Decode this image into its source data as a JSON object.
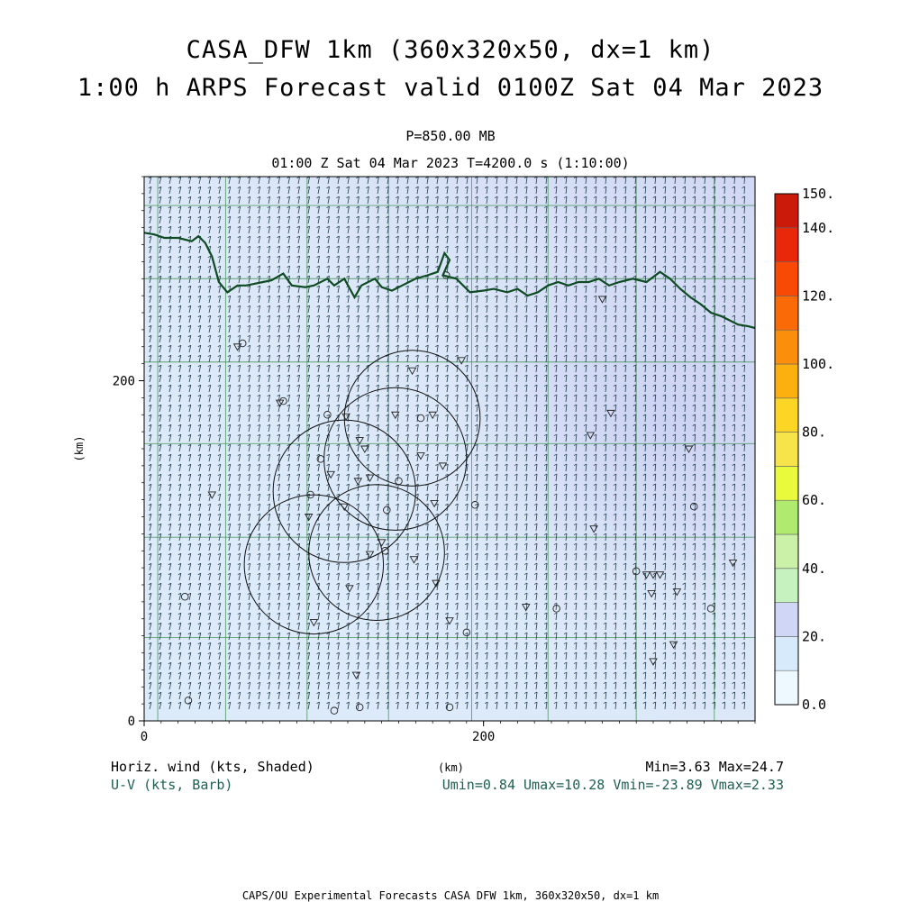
{
  "header": {
    "title_line1": "CASA_DFW 1km (360x320x50, dx=1 km)",
    "title_line2": "1:00 h ARPS Forecast valid 0100Z Sat 04 Mar 2023",
    "pressure_level": "P=850.00 MB",
    "time_line": "01:00 Z Sat 04 Mar 2023   T=4200.0 s (1:10:00)"
  },
  "footer": {
    "field1": "Horiz. wind (kts, Shaded)",
    "field2": "U-V (kts, Barb)",
    "xunit": "(km)",
    "minmax": "Min=3.63 Max=24.7",
    "uv_stats": "Umin=0.84 Umax=10.28 Vmin=-23.89 Vmax=2.33",
    "credit": "CAPS/OU Experimental Forecasts  CASA DFW 1km, 360x320x50, dx=1 km"
  },
  "chart_data": {
    "type": "heatmap",
    "title": "CASA_DFW 1km (360x320x50, dx=1 km)",
    "subtitle": "1:00 h ARPS Forecast valid 0100Z Sat 04 Mar 2023",
    "xlabel": "(km)",
    "ylabel": "(km)",
    "xlim": [
      0,
      360
    ],
    "ylim": [
      0,
      320
    ],
    "x_ticks": [
      0,
      200
    ],
    "y_ticks": [
      0,
      200
    ],
    "x_tick_labels": [
      "0",
      "200"
    ],
    "y_tick_labels": [
      "0",
      "200"
    ],
    "field_min": 3.63,
    "field_max": 24.7,
    "u_min": 0.84,
    "u_max": 10.28,
    "v_min": -23.89,
    "v_max": 2.33,
    "colorbar": {
      "levels": [
        0,
        10,
        20,
        30,
        40,
        50,
        60,
        70,
        80,
        90,
        100,
        110,
        120,
        130,
        140,
        150
      ],
      "labels": [
        "0.0",
        "20.",
        "40.",
        "60.",
        "80.",
        "100.",
        "120.",
        "140.",
        "150."
      ],
      "colors": [
        "#eef8ff",
        "#d6eafc",
        "#cfd6f6",
        "#c6f2c0",
        "#cbf0a8",
        "#b0ea6e",
        "#e9fa3c",
        "#f6e44a",
        "#fdd524",
        "#fcb010",
        "#fb8e0a",
        "#fa6a06",
        "#f84a04",
        "#e82808",
        "#cc1a0a"
      ]
    },
    "radar_sites_km": [
      {
        "x": 100,
        "y": 92,
        "r": 41
      },
      {
        "x": 137,
        "y": 99,
        "r": 40
      },
      {
        "x": 118,
        "y": 135,
        "r": 42
      },
      {
        "x": 148,
        "y": 154,
        "r": 42
      },
      {
        "x": 158,
        "y": 178,
        "r": 40
      }
    ],
    "stations_km": [
      {
        "x": 58,
        "y": 222,
        "m": "c"
      },
      {
        "x": 55,
        "y": 220,
        "m": "v"
      },
      {
        "x": 80,
        "y": 187,
        "m": "v"
      },
      {
        "x": 82,
        "y": 188,
        "m": "c"
      },
      {
        "x": 108,
        "y": 180,
        "m": "c"
      },
      {
        "x": 119,
        "y": 179,
        "m": "v"
      },
      {
        "x": 127,
        "y": 165,
        "m": "v"
      },
      {
        "x": 130,
        "y": 160,
        "m": "v"
      },
      {
        "x": 104,
        "y": 154,
        "m": "c"
      },
      {
        "x": 110,
        "y": 145,
        "m": "v"
      },
      {
        "x": 126,
        "y": 141,
        "m": "v"
      },
      {
        "x": 133,
        "y": 143,
        "m": "v"
      },
      {
        "x": 150,
        "y": 141,
        "m": "c"
      },
      {
        "x": 98,
        "y": 133,
        "m": "c"
      },
      {
        "x": 97,
        "y": 120,
        "m": "v"
      },
      {
        "x": 118,
        "y": 126,
        "m": "v"
      },
      {
        "x": 143,
        "y": 124,
        "m": "c"
      },
      {
        "x": 140,
        "y": 105,
        "m": "v"
      },
      {
        "x": 133,
        "y": 98,
        "m": "v"
      },
      {
        "x": 142,
        "y": 100,
        "m": "c"
      },
      {
        "x": 159,
        "y": 95,
        "m": "v"
      },
      {
        "x": 171,
        "y": 128,
        "m": "v"
      },
      {
        "x": 176,
        "y": 150,
        "m": "v"
      },
      {
        "x": 163,
        "y": 156,
        "m": "v"
      },
      {
        "x": 163,
        "y": 178,
        "m": "c"
      },
      {
        "x": 170,
        "y": 180,
        "m": "v"
      },
      {
        "x": 148,
        "y": 180,
        "m": "v"
      },
      {
        "x": 158,
        "y": 206,
        "m": "v"
      },
      {
        "x": 187,
        "y": 212,
        "m": "v"
      },
      {
        "x": 178,
        "y": 262,
        "m": "c"
      },
      {
        "x": 195,
        "y": 127,
        "m": "c"
      },
      {
        "x": 40,
        "y": 133,
        "m": "v"
      },
      {
        "x": 24,
        "y": 73,
        "m": "c"
      },
      {
        "x": 26,
        "y": 12,
        "m": "c"
      },
      {
        "x": 112,
        "y": 6,
        "m": "c"
      },
      {
        "x": 127,
        "y": 8,
        "m": "c"
      },
      {
        "x": 125,
        "y": 27,
        "m": "v"
      },
      {
        "x": 121,
        "y": 78,
        "m": "v"
      },
      {
        "x": 172,
        "y": 81,
        "m": "v"
      },
      {
        "x": 180,
        "y": 59,
        "m": "v"
      },
      {
        "x": 190,
        "y": 52,
        "m": "c"
      },
      {
        "x": 180,
        "y": 8,
        "m": "c"
      },
      {
        "x": 225,
        "y": 67,
        "m": "v"
      },
      {
        "x": 243,
        "y": 66,
        "m": "c"
      },
      {
        "x": 265,
        "y": 113,
        "m": "v"
      },
      {
        "x": 263,
        "y": 168,
        "m": "v"
      },
      {
        "x": 275,
        "y": 181,
        "m": "v"
      },
      {
        "x": 270,
        "y": 248,
        "m": "v"
      },
      {
        "x": 290,
        "y": 88,
        "m": "c"
      },
      {
        "x": 296,
        "y": 86,
        "m": "v"
      },
      {
        "x": 300,
        "y": 86,
        "m": "v"
      },
      {
        "x": 304,
        "y": 86,
        "m": "v"
      },
      {
        "x": 299,
        "y": 75,
        "m": "v"
      },
      {
        "x": 314,
        "y": 76,
        "m": "v"
      },
      {
        "x": 324,
        "y": 126,
        "m": "c"
      },
      {
        "x": 321,
        "y": 160,
        "m": "v"
      },
      {
        "x": 334,
        "y": 66,
        "m": "c"
      },
      {
        "x": 312,
        "y": 45,
        "m": "v"
      },
      {
        "x": 300,
        "y": 35,
        "m": "v"
      },
      {
        "x": 347,
        "y": 93,
        "m": "v"
      },
      {
        "x": 100,
        "y": 58,
        "m": "v"
      }
    ],
    "boundary_km": [
      [
        0,
        287
      ],
      [
        6,
        286
      ],
      [
        12,
        284
      ],
      [
        20,
        284
      ],
      [
        28,
        282
      ],
      [
        32,
        285
      ],
      [
        36,
        281
      ],
      [
        40,
        273
      ],
      [
        44,
        258
      ],
      [
        49,
        252
      ],
      [
        55,
        256
      ],
      [
        60,
        256
      ],
      [
        65,
        257
      ],
      [
        70,
        258
      ],
      [
        75,
        259
      ],
      [
        82,
        263
      ],
      [
        87,
        256
      ],
      [
        95,
        255
      ],
      [
        100,
        256
      ],
      [
        108,
        260
      ],
      [
        112,
        256
      ],
      [
        118,
        260
      ],
      [
        124,
        249
      ],
      [
        128,
        256
      ],
      [
        136,
        260
      ],
      [
        140,
        255
      ],
      [
        146,
        253
      ],
      [
        152,
        256
      ],
      [
        160,
        260
      ],
      [
        167,
        262
      ],
      [
        173,
        264
      ],
      [
        177,
        275
      ],
      [
        180,
        271
      ],
      [
        176,
        262
      ],
      [
        184,
        260
      ],
      [
        192,
        252
      ],
      [
        200,
        253
      ],
      [
        206,
        254
      ],
      [
        214,
        252
      ],
      [
        220,
        254
      ],
      [
        226,
        250
      ],
      [
        232,
        252
      ],
      [
        238,
        256
      ],
      [
        244,
        258
      ],
      [
        250,
        256
      ],
      [
        256,
        258
      ],
      [
        262,
        258
      ],
      [
        268,
        260
      ],
      [
        274,
        256
      ],
      [
        280,
        258
      ],
      [
        288,
        260
      ],
      [
        296,
        258
      ],
      [
        304,
        264
      ],
      [
        310,
        260
      ],
      [
        316,
        254
      ],
      [
        322,
        249
      ],
      [
        328,
        245
      ],
      [
        334,
        240
      ],
      [
        340,
        238
      ],
      [
        350,
        233
      ],
      [
        356,
        232
      ],
      [
        360,
        231
      ]
    ],
    "county_lines_km": {
      "x": [
        8,
        48,
        96,
        144,
        193,
        238,
        290,
        336
      ],
      "y": [
        49,
        108,
        163,
        211,
        260,
        303
      ]
    }
  }
}
